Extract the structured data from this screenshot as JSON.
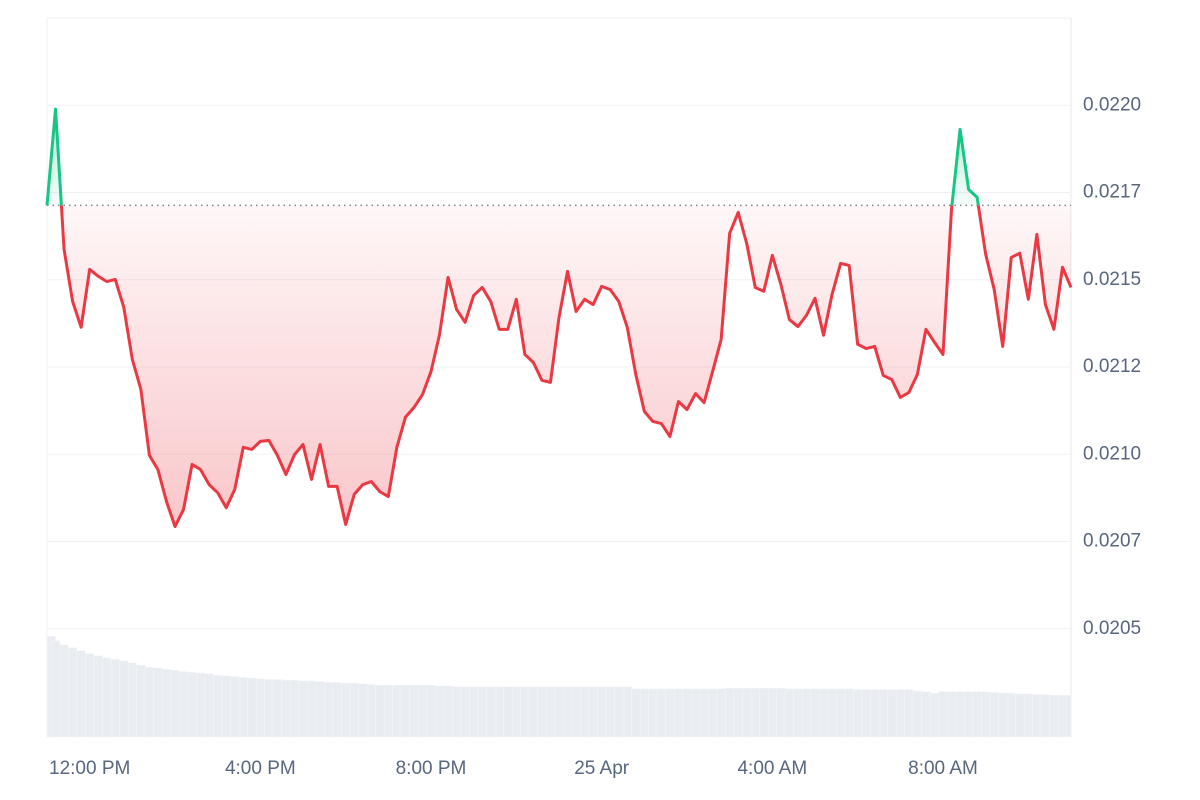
{
  "chart_data": {
    "type": "line",
    "x": [
      11,
      11.2,
      11.4,
      11.6,
      11.8,
      12,
      12.2,
      12.4,
      12.6,
      12.8,
      13,
      13.2,
      13.4,
      13.6,
      13.8,
      14,
      14.2,
      14.4,
      14.6,
      14.8,
      15,
      15.2,
      15.4,
      15.6,
      15.8,
      16,
      16.2,
      16.4,
      16.6,
      16.8,
      17,
      17.2,
      17.4,
      17.6,
      17.8,
      18,
      18.2,
      18.4,
      18.6,
      18.8,
      19,
      19.2,
      19.4,
      19.6,
      19.8,
      20,
      20.2,
      20.4,
      20.6,
      20.8,
      21,
      21.2,
      21.4,
      21.6,
      21.8,
      22,
      22.2,
      22.4,
      22.6,
      22.8,
      23,
      23.2,
      23.4,
      23.6,
      23.8,
      24,
      24.2,
      24.4,
      24.6,
      24.8,
      25,
      25.2,
      25.4,
      25.6,
      25.8,
      26,
      26.2,
      26.4,
      26.6,
      26.8,
      27,
      27.2,
      27.4,
      27.6,
      27.8,
      28,
      28.2,
      28.4,
      28.6,
      28.8,
      29,
      29.2,
      29.4,
      29.6,
      29.8,
      30,
      30.2,
      30.4,
      30.6,
      30.8,
      31,
      31.2,
      31.4,
      31.6,
      31.8,
      32,
      32.2,
      32.4,
      32.6,
      32.8,
      33,
      33.2,
      33.4,
      33.6,
      33.8,
      34,
      34.2,
      34.4,
      34.6,
      34.8,
      35
    ],
    "values": [
      0.021713,
      0.021989,
      0.021587,
      0.021438,
      0.021364,
      0.02153,
      0.02151,
      0.021495,
      0.021501,
      0.021421,
      0.021272,
      0.021186,
      0.020997,
      0.020956,
      0.020865,
      0.020793,
      0.020842,
      0.020971,
      0.020956,
      0.020913,
      0.02089,
      0.020847,
      0.020899,
      0.02102,
      0.021014,
      0.021037,
      0.02104,
      0.020997,
      0.020942,
      0.020999,
      0.021028,
      0.020928,
      0.021028,
      0.020908,
      0.020908,
      0.020799,
      0.020885,
      0.020913,
      0.020922,
      0.020893,
      0.020879,
      0.02102,
      0.021106,
      0.021134,
      0.021171,
      0.021237,
      0.021343,
      0.021507,
      0.021415,
      0.021378,
      0.021455,
      0.021478,
      0.021438,
      0.021358,
      0.021358,
      0.021444,
      0.021286,
      0.021263,
      0.021212,
      0.021206,
      0.021392,
      0.021524,
      0.021409,
      0.021444,
      0.021429,
      0.021481,
      0.021472,
      0.021438,
      0.021364,
      0.021229,
      0.021123,
      0.021094,
      0.021088,
      0.021051,
      0.021151,
      0.021128,
      0.021174,
      0.021148,
      0.021237,
      0.021329,
      0.021633,
      0.021693,
      0.021604,
      0.021478,
      0.021467,
      0.02157,
      0.021487,
      0.021386,
      0.021366,
      0.021398,
      0.021447,
      0.021341,
      0.021458,
      0.021547,
      0.021541,
      0.021315,
      0.021303,
      0.021309,
      0.021226,
      0.021214,
      0.021163,
      0.021177,
      0.021229,
      0.021358,
      0.021321,
      0.021286,
      0.021702,
      0.021931,
      0.021759,
      0.021736,
      0.021573,
      0.021472,
      0.021309,
      0.021564,
      0.021576,
      0.021444,
      0.02163,
      0.021429,
      0.021358,
      0.021536,
      0.021478
    ],
    "color_above": "#16c784",
    "color_below": "#ea3943",
    "volume_values": [
      14,
      13.4,
      12.8,
      12.4,
      12,
      11.6,
      11.3,
      11,
      10.8,
      10.6,
      10.3,
      10,
      9.7,
      9.6,
      9.4,
      9.3,
      9.1,
      9,
      8.9,
      8.8,
      8.6,
      8.5,
      8.4,
      8.3,
      8.2,
      8.1,
      8,
      8,
      7.9,
      7.9,
      7.8,
      7.8,
      7.7,
      7.6,
      7.6,
      7.5,
      7.5,
      7.4,
      7.3,
      7.2,
      7.2,
      7.2,
      7.2,
      7.2,
      7.2,
      7.2,
      7.1,
      7.1,
      7,
      7,
      7,
      7,
      7,
      7,
      7,
      7,
      7,
      7,
      7,
      7,
      7,
      7,
      7,
      7,
      7,
      7,
      7,
      7,
      7,
      6.7,
      6.7,
      6.7,
      6.7,
      6.7,
      6.7,
      6.7,
      6.7,
      6.7,
      6.7,
      6.7,
      6.8,
      6.8,
      6.8,
      6.8,
      6.8,
      6.8,
      6.8,
      6.7,
      6.7,
      6.7,
      6.7,
      6.7,
      6.7,
      6.7,
      6.7,
      6.6,
      6.6,
      6.6,
      6.6,
      6.6,
      6.6,
      6.6,
      6.4,
      6.3,
      6.1,
      6.3,
      6.3,
      6.3,
      6.3,
      6.3,
      6.3,
      6.2,
      6.1,
      6.1,
      6,
      6,
      5.9,
      5.9,
      5.8,
      5.8,
      5.8
    ],
    "volume_color": "#e9ecf1",
    "y2lim": [
      0,
      100
    ],
    "xlim": [
      11,
      35
    ],
    "xticks": [
      {
        "value": 12,
        "label": "12:00 PM"
      },
      {
        "value": 16,
        "label": "4:00 PM"
      },
      {
        "value": 20,
        "label": "8:00 PM"
      },
      {
        "value": 24,
        "label": "25 Apr"
      },
      {
        "value": 28,
        "label": "4:00 AM"
      },
      {
        "value": 32,
        "label": "8:00 AM"
      }
    ],
    "ylim": [
      0.02019,
      0.02225
    ],
    "yticks": [
      {
        "value": 0.022,
        "label": "0.0220"
      },
      {
        "value": 0.02175,
        "label": "0.0217"
      },
      {
        "value": 0.0215,
        "label": "0.0215"
      },
      {
        "value": 0.02125,
        "label": "0.0212"
      },
      {
        "value": 0.021,
        "label": "0.0210"
      },
      {
        "value": 0.02075,
        "label": "0.0207"
      },
      {
        "value": 0.0205,
        "label": "0.0205"
      }
    ],
    "grid": true
  }
}
